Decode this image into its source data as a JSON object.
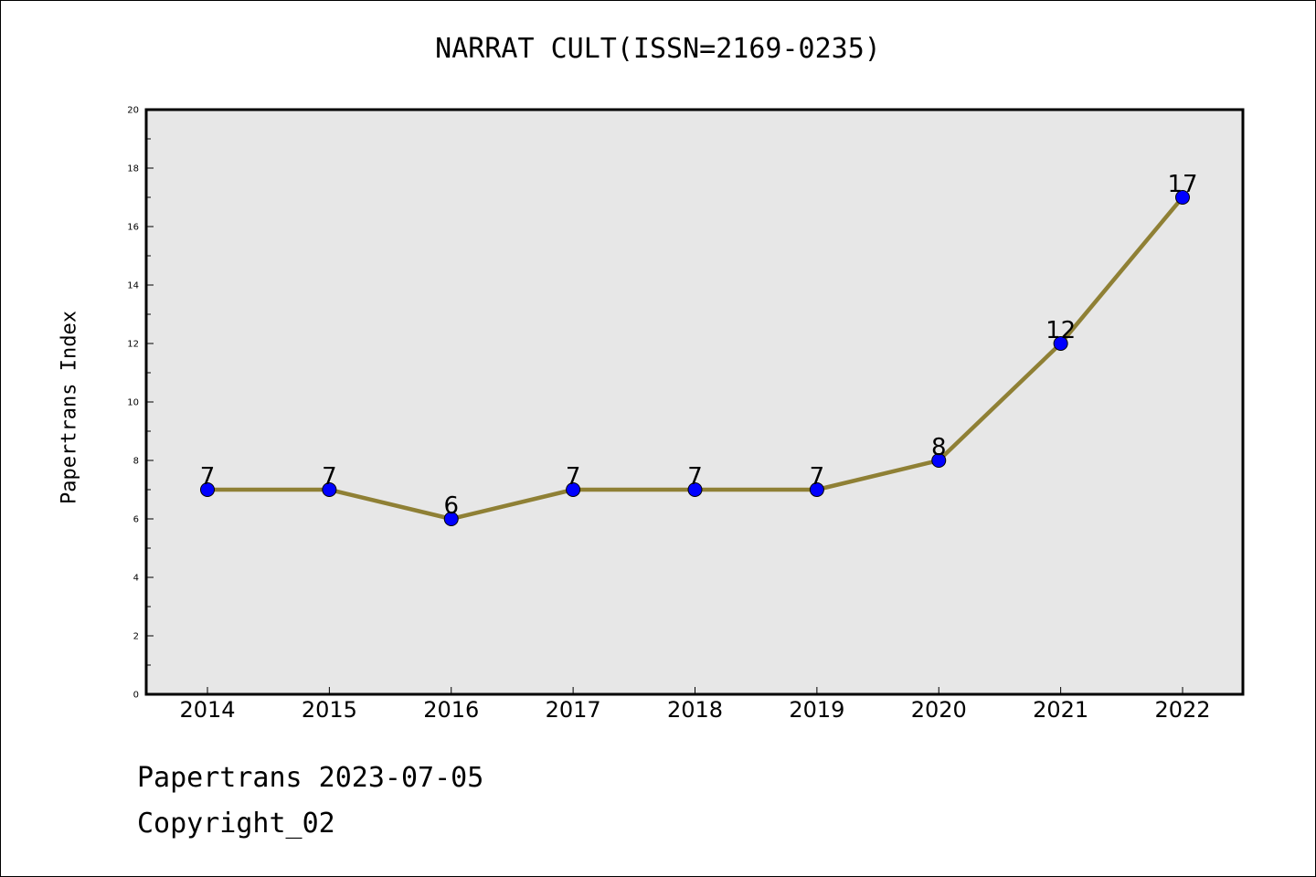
{
  "chart_data": {
    "type": "line",
    "title": "NARRAT CULT(ISSN=2169-0235)",
    "xlabel": "",
    "ylabel": "Papertrans Index",
    "categories": [
      "2014",
      "2015",
      "2016",
      "2017",
      "2018",
      "2019",
      "2020",
      "2021",
      "2022"
    ],
    "series": [
      {
        "values": [
          7,
          7,
          6,
          7,
          7,
          7,
          8,
          12,
          17
        ],
        "line_color": "#8f8035",
        "marker_color": "#0000ff"
      }
    ],
    "ylim": [
      0,
      20
    ],
    "yticks": [
      0,
      2,
      4,
      6,
      8,
      10,
      12,
      14,
      16,
      18,
      20
    ],
    "background_color": "#e7e7e7",
    "grid": false,
    "data_labels": true
  },
  "footer": {
    "line1": "Papertrans 2023-07-05",
    "line2": "Copyright_02"
  }
}
